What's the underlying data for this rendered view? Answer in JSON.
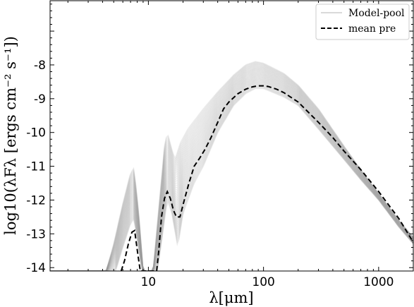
{
  "chart_data": {
    "type": "line",
    "title": "",
    "xlabel": "λ[μm]",
    "ylabel": "log10(λFλ [ergs cm⁻² s⁻¹])",
    "xscale": "log",
    "xlim": [
      1.4,
      2000
    ],
    "ylim": [
      -14.1,
      -6.1
    ],
    "xticks": [
      10,
      100,
      1000
    ],
    "xtick_labels": [
      "10",
      "100",
      "1000"
    ],
    "yticks": [
      -14,
      -13,
      -12,
      -11,
      -10,
      -9,
      -8
    ],
    "ytick_labels": [
      "-14",
      "-13",
      "-12",
      "-11",
      "-10",
      "-9",
      "-8"
    ],
    "grid": false,
    "legend_position": "top-right",
    "series": [
      {
        "name": "Model-pool",
        "color": "#999999",
        "style": "solid",
        "band_count": 40,
        "upper": [
          [
            4.3,
            -14.1
          ],
          [
            5,
            -13.3
          ],
          [
            6,
            -12.1
          ],
          [
            7,
            -11.2
          ],
          [
            7.5,
            -11.05
          ],
          [
            8.2,
            -12.3
          ],
          [
            9,
            -14.1
          ],
          [
            11,
            -14.1
          ],
          [
            12.5,
            -12.0
          ],
          [
            13.8,
            -10.4
          ],
          [
            14.6,
            -10.0
          ],
          [
            16,
            -10.5
          ],
          [
            17,
            -10.8
          ],
          [
            19,
            -10.3
          ],
          [
            22,
            -9.9
          ],
          [
            30,
            -9.3
          ],
          [
            40,
            -8.8
          ],
          [
            55,
            -8.3
          ],
          [
            70,
            -8.0
          ],
          [
            85,
            -7.9
          ],
          [
            100,
            -7.95
          ],
          [
            150,
            -8.25
          ],
          [
            200,
            -8.6
          ],
          [
            300,
            -9.3
          ],
          [
            500,
            -10.4
          ],
          [
            700,
            -11.1
          ],
          [
            1000,
            -11.8
          ],
          [
            1500,
            -12.6
          ],
          [
            2000,
            -13.1
          ]
        ],
        "lower": [
          [
            5.2,
            -14.1
          ],
          [
            6,
            -13.4
          ],
          [
            7,
            -12.7
          ],
          [
            7.5,
            -12.55
          ],
          [
            8.2,
            -13.4
          ],
          [
            8.8,
            -14.1
          ],
          [
            12,
            -14.1
          ],
          [
            13.8,
            -12.6
          ],
          [
            14.6,
            -12.0
          ],
          [
            16,
            -12.4
          ],
          [
            18,
            -13.4
          ],
          [
            20,
            -12.4
          ],
          [
            25,
            -11.5
          ],
          [
            30,
            -11.0
          ],
          [
            40,
            -10.0
          ],
          [
            55,
            -9.2
          ],
          [
            70,
            -8.85
          ],
          [
            85,
            -8.7
          ],
          [
            100,
            -8.7
          ],
          [
            150,
            -8.95
          ],
          [
            200,
            -9.2
          ],
          [
            300,
            -9.9
          ],
          [
            500,
            -10.8
          ],
          [
            700,
            -11.4
          ],
          [
            1000,
            -12.0
          ],
          [
            1500,
            -12.8
          ],
          [
            2000,
            -13.3
          ]
        ]
      },
      {
        "name": "mean pre",
        "color": "#000000",
        "style": "dashed",
        "x": [
          5.8,
          6.2,
          6.7,
          7.2,
          7.6,
          8.1,
          8.5,
          11.8,
          12.3,
          13.0,
          13.8,
          14.6,
          15.5,
          16.5,
          17.5,
          18.8,
          20.5,
          22.5,
          25,
          28,
          31,
          35,
          40,
          45,
          50,
          60,
          70,
          80,
          90,
          100,
          110,
          130,
          150,
          200,
          300,
          400,
          500,
          700,
          1000,
          1500,
          2000
        ],
        "y": [
          -14.1,
          -13.8,
          -13.3,
          -12.95,
          -12.9,
          -13.6,
          -14.1,
          -14.1,
          -13.5,
          -12.5,
          -11.95,
          -11.75,
          -11.95,
          -12.3,
          -12.5,
          -12.5,
          -12.0,
          -11.5,
          -11.0,
          -10.75,
          -10.5,
          -10.15,
          -9.7,
          -9.3,
          -9.1,
          -8.85,
          -8.72,
          -8.65,
          -8.62,
          -8.62,
          -8.64,
          -8.72,
          -8.82,
          -9.1,
          -9.7,
          -10.15,
          -10.55,
          -11.1,
          -11.75,
          -12.55,
          -13.25
        ]
      }
    ]
  }
}
